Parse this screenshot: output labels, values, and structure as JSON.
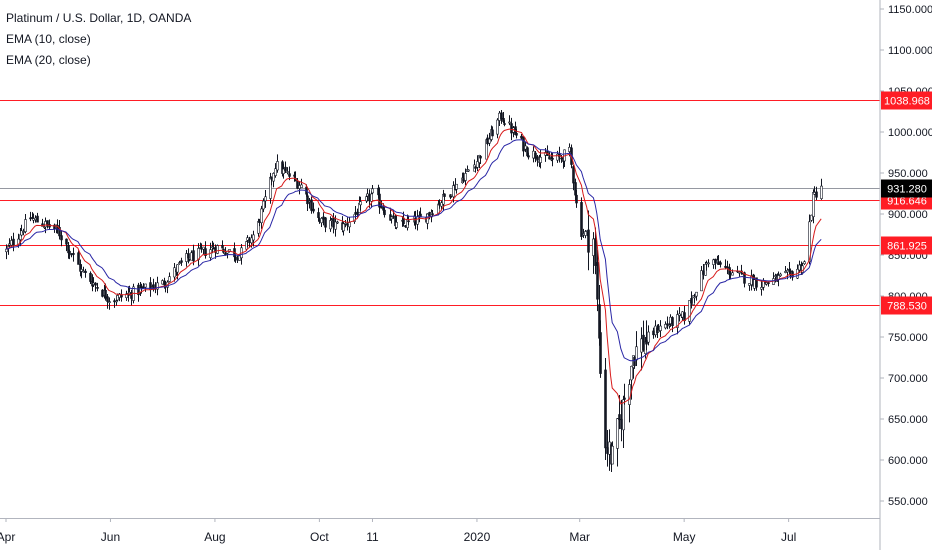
{
  "chart_data": {
    "type": "candlestick",
    "title": "Platinum / U.S. Dollar, 1D, OANDA",
    "indicators": [
      {
        "name": "EMA (10, close)",
        "color": "#d81b1b"
      },
      {
        "name": "EMA (20, close)",
        "color": "#2a27a6"
      }
    ],
    "ylim": [
      530,
      1160
    ],
    "yticks": [
      550,
      600,
      650,
      700,
      750,
      800,
      850,
      900,
      950,
      1000,
      1050,
      1100,
      1150
    ],
    "ytick_labels": [
      "550.000",
      "600.000",
      "650.000",
      "700.000",
      "750.000",
      "800.000",
      "850.000",
      "900.000",
      "950.000",
      "1000.000",
      "1050.000",
      "1100.000",
      "1150.000"
    ],
    "xlim": [
      "2019-04-01",
      "2020-07-31"
    ],
    "xticks": [
      {
        "date": "2019-04-01",
        "label": "Apr"
      },
      {
        "date": "2019-06-01",
        "label": "Jun"
      },
      {
        "date": "2019-08-01",
        "label": "Aug"
      },
      {
        "date": "2019-10-01",
        "label": "Oct"
      },
      {
        "date": "2019-11-01",
        "label": "11"
      },
      {
        "date": "2020-01-01",
        "label": "2020"
      },
      {
        "date": "2020-03-01",
        "label": "Mar"
      },
      {
        "date": "2020-05-01",
        "label": "May"
      },
      {
        "date": "2020-07-01",
        "label": "Jul"
      }
    ],
    "close_path": [
      [
        "2019-04-01",
        855
      ],
      [
        "2019-04-15",
        895
      ],
      [
        "2019-05-01",
        880
      ],
      [
        "2019-05-15",
        830
      ],
      [
        "2019-06-01",
        795
      ],
      [
        "2019-06-15",
        805
      ],
      [
        "2019-07-01",
        815
      ],
      [
        "2019-07-15",
        845
      ],
      [
        "2019-08-01",
        860
      ],
      [
        "2019-08-15",
        850
      ],
      [
        "2019-08-25",
        880
      ],
      [
        "2019-09-05",
        960
      ],
      [
        "2019-09-20",
        935
      ],
      [
        "2019-10-01",
        890
      ],
      [
        "2019-10-15",
        885
      ],
      [
        "2019-11-01",
        925
      ],
      [
        "2019-11-15",
        885
      ],
      [
        "2019-12-01",
        895
      ],
      [
        "2019-12-15",
        925
      ],
      [
        "2020-01-01",
        965
      ],
      [
        "2020-01-15",
        1020
      ],
      [
        "2020-01-31",
        975
      ],
      [
        "2020-02-15",
        965
      ],
      [
        "2020-02-24",
        975
      ],
      [
        "2020-03-01",
        880
      ],
      [
        "2020-03-09",
        870
      ],
      [
        "2020-03-12",
        750
      ],
      [
        "2020-03-16",
        620
      ],
      [
        "2020-03-20",
        600
      ],
      [
        "2020-04-01",
        730
      ],
      [
        "2020-04-15",
        760
      ],
      [
        "2020-05-01",
        775
      ],
      [
        "2020-05-15",
        845
      ],
      [
        "2020-06-01",
        825
      ],
      [
        "2020-06-15",
        815
      ],
      [
        "2020-07-01",
        825
      ],
      [
        "2020-07-10",
        840
      ],
      [
        "2020-07-15",
        920
      ],
      [
        "2020-07-20",
        935
      ]
    ],
    "horizontal_lines": [
      {
        "value": 1038.968,
        "label": "1038.968",
        "color": "#ff1d25"
      },
      {
        "value": 916.646,
        "label": "916.646",
        "color": "#ff1d25"
      },
      {
        "value": 861.925,
        "label": "861.925",
        "color": "#ff1d25"
      },
      {
        "value": 788.53,
        "label": "788.530",
        "color": "#ff1d25"
      },
      {
        "value": 931.28,
        "label": "931.280",
        "color": "#9598a1",
        "last_price": true
      }
    ],
    "grid": false,
    "legend_position": "top-left"
  }
}
